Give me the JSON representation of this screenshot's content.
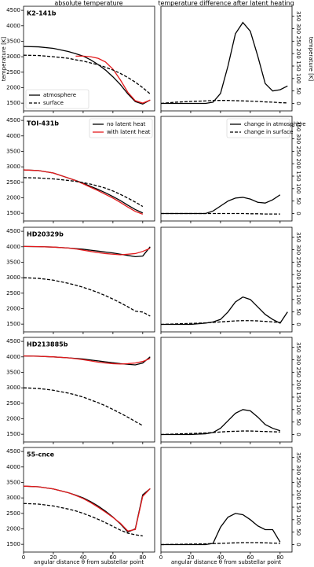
{
  "header": {
    "column_titles": [
      "absolute temperature",
      "temperature difference after latent heating"
    ],
    "x_label": "angular distance θ from substellar point",
    "y_label": "temperature [K]"
  },
  "chart_data": [
    {
      "type": "line",
      "title": "K2-141b",
      "x": [
        0,
        10,
        20,
        30,
        35,
        40,
        45,
        50,
        55,
        60,
        65,
        70,
        75,
        80,
        85
      ],
      "xlim": [
        0,
        88
      ],
      "xticks": [
        0,
        20,
        40,
        60,
        80
      ],
      "ylim": [
        1250,
        4630
      ],
      "yticks": [
        1500,
        2000,
        2500,
        3000,
        3500,
        4000,
        4500
      ],
      "series": [
        {
          "color": "#000000",
          "dash": false,
          "values": [
            3330,
            3320,
            3270,
            3170,
            3100,
            3020,
            2900,
            2750,
            2570,
            2350,
            2100,
            1800,
            1550,
            1470,
            1600
          ]
        },
        {
          "color": "#e41a1c",
          "dash": false,
          "values": [
            null,
            null,
            null,
            null,
            3020,
            3020,
            3000,
            2950,
            2830,
            2600,
            2250,
            1850,
            1580,
            1500,
            1600
          ]
        },
        {
          "color": "#000000",
          "dash": true,
          "values": [
            3050,
            3040,
            3000,
            2950,
            2900,
            2860,
            2800,
            2740,
            2660,
            2570,
            2460,
            2330,
            2180,
            2000,
            1800
          ]
        }
      ],
      "legend": {
        "position": "lower left",
        "entries": [
          {
            "label": "atmosphere",
            "color": "#000000",
            "dash": false
          },
          {
            "label": "surface",
            "color": "#000000",
            "dash": true
          }
        ]
      }
    },
    {
      "type": "line",
      "x": [
        0,
        10,
        20,
        30,
        35,
        40,
        45,
        50,
        55,
        60,
        65,
        70,
        75,
        80,
        85
      ],
      "xlim": [
        0,
        88
      ],
      "xticks": [
        0,
        20,
        40,
        60,
        80
      ],
      "ylim": [
        -30,
        390
      ],
      "yticks": [
        0,
        50,
        100,
        150,
        200,
        250,
        300,
        350
      ],
      "series": [
        {
          "color": "#000000",
          "dash": false,
          "values": [
            0,
            0,
            0,
            0,
            5,
            40,
            150,
            280,
            325,
            290,
            190,
            80,
            50,
            55,
            70
          ]
        },
        {
          "color": "#000000",
          "dash": true,
          "values": [
            0,
            5,
            8,
            10,
            12,
            12,
            12,
            11,
            10,
            9,
            8,
            6,
            5,
            3,
            2
          ]
        }
      ]
    },
    {
      "type": "line",
      "title": "TOI-431b",
      "x": [
        0,
        10,
        20,
        30,
        35,
        40,
        45,
        50,
        55,
        60,
        65,
        70,
        75,
        80,
        85
      ],
      "xlim": [
        0,
        88
      ],
      "xticks": [
        0,
        20,
        40,
        60,
        80
      ],
      "ylim": [
        1250,
        4630
      ],
      "yticks": [
        1500,
        2000,
        2500,
        3000,
        3500,
        4000,
        4500
      ],
      "series": [
        {
          "color": "#000000",
          "dash": false,
          "values": [
            2900,
            2880,
            2800,
            2640,
            2560,
            2470,
            2370,
            2270,
            2160,
            2040,
            1910,
            1760,
            1620,
            1510,
            null
          ]
        },
        {
          "color": "#e41a1c",
          "dash": false,
          "values": [
            2900,
            2880,
            2800,
            2640,
            2555,
            2450,
            2340,
            2230,
            2110,
            1990,
            1850,
            1700,
            1560,
            1470,
            null
          ]
        },
        {
          "color": "#000000",
          "dash": true,
          "values": [
            2650,
            2640,
            2610,
            2560,
            2530,
            2490,
            2440,
            2380,
            2310,
            2220,
            2110,
            1990,
            1860,
            1720,
            null
          ]
        }
      ],
      "legend": {
        "position": "upper right",
        "entries": [
          {
            "label": "no latent heat",
            "color": "#000000",
            "dash": false
          },
          {
            "label": "with latent heat",
            "color": "#e41a1c",
            "dash": false
          }
        ]
      }
    },
    {
      "type": "line",
      "x": [
        0,
        10,
        20,
        30,
        35,
        40,
        45,
        50,
        55,
        60,
        65,
        70,
        75,
        80,
        85
      ],
      "xlim": [
        0,
        88
      ],
      "xticks": [
        0,
        20,
        40,
        60,
        80
      ],
      "ylim": [
        -30,
        390
      ],
      "yticks": [
        0,
        50,
        100,
        150,
        200,
        250,
        300,
        350
      ],
      "series": [
        {
          "color": "#000000",
          "dash": false,
          "values": [
            0,
            0,
            0,
            0,
            10,
            30,
            50,
            62,
            65,
            58,
            45,
            42,
            55,
            75,
            null
          ]
        },
        {
          "color": "#000000",
          "dash": true,
          "values": [
            0,
            0,
            0,
            0,
            0,
            0,
            0,
            0,
            0,
            -1,
            -1,
            -2,
            -2,
            -2,
            null
          ]
        }
      ],
      "legend": {
        "position": "upper right",
        "entries": [
          {
            "label": "change in atmosphere",
            "color": "#000000",
            "dash": false
          },
          {
            "label": "change in surface",
            "color": "#000000",
            "dash": true
          }
        ]
      }
    },
    {
      "type": "line",
      "title": "HD20329b",
      "x": [
        0,
        10,
        20,
        30,
        35,
        40,
        45,
        50,
        55,
        60,
        65,
        70,
        75,
        80,
        85
      ],
      "xlim": [
        0,
        88
      ],
      "xticks": [
        0,
        20,
        40,
        60,
        80
      ],
      "ylim": [
        1250,
        4630
      ],
      "yticks": [
        1500,
        2000,
        2500,
        3000,
        3500,
        4000,
        4500
      ],
      "series": [
        {
          "color": "#000000",
          "dash": false,
          "values": [
            4010,
            4005,
            3990,
            3960,
            3940,
            3920,
            3890,
            3860,
            3830,
            3800,
            3760,
            3720,
            3680,
            3700,
            4000
          ]
        },
        {
          "color": "#e41a1c",
          "dash": false,
          "values": [
            4010,
            4005,
            3990,
            3960,
            3930,
            3890,
            3850,
            3810,
            3780,
            3760,
            3740,
            3760,
            3780,
            3850,
            3950
          ]
        },
        {
          "color": "#000000",
          "dash": true,
          "values": [
            3000,
            2980,
            2920,
            2820,
            2760,
            2690,
            2610,
            2520,
            2420,
            2310,
            2190,
            2060,
            1920,
            1890,
            1760
          ]
        }
      ]
    },
    {
      "type": "line",
      "x": [
        0,
        10,
        20,
        30,
        35,
        40,
        45,
        50,
        55,
        60,
        65,
        70,
        75,
        80,
        85
      ],
      "xlim": [
        0,
        88
      ],
      "xticks": [
        0,
        20,
        40,
        60,
        80
      ],
      "ylim": [
        -30,
        390
      ],
      "yticks": [
        0,
        50,
        100,
        150,
        200,
        250,
        300,
        350
      ],
      "series": [
        {
          "color": "#000000",
          "dash": false,
          "values": [
            0,
            0,
            0,
            5,
            10,
            20,
            50,
            90,
            110,
            100,
            70,
            40,
            20,
            5,
            50
          ]
        },
        {
          "color": "#000000",
          "dash": true,
          "values": [
            0,
            2,
            4,
            6,
            8,
            10,
            12,
            14,
            15,
            15,
            14,
            12,
            10,
            8,
            null
          ]
        }
      ]
    },
    {
      "type": "line",
      "title": "HD213885b",
      "x": [
        0,
        10,
        20,
        30,
        35,
        40,
        45,
        50,
        55,
        60,
        65,
        70,
        75,
        80,
        85
      ],
      "xlim": [
        0,
        88
      ],
      "xticks": [
        0,
        20,
        40,
        60,
        80
      ],
      "ylim": [
        1250,
        4630
      ],
      "yticks": [
        1500,
        2000,
        2500,
        3000,
        3500,
        4000,
        4500
      ],
      "series": [
        {
          "color": "#000000",
          "dash": false,
          "values": [
            4030,
            4020,
            4000,
            3970,
            3950,
            3930,
            3900,
            3870,
            3840,
            3810,
            3780,
            3760,
            3740,
            3800,
            4000
          ]
        },
        {
          "color": "#e41a1c",
          "dash": false,
          "values": [
            4030,
            4020,
            4000,
            3970,
            3940,
            3910,
            3870,
            3830,
            3800,
            3780,
            3770,
            3780,
            3800,
            3850,
            3950
          ]
        },
        {
          "color": "#000000",
          "dash": true,
          "values": [
            3000,
            2980,
            2920,
            2830,
            2770,
            2700,
            2610,
            2520,
            2420,
            2300,
            2180,
            2050,
            1910,
            1780,
            null
          ]
        }
      ]
    },
    {
      "type": "line",
      "x": [
        0,
        10,
        20,
        30,
        35,
        40,
        45,
        50,
        55,
        60,
        65,
        70,
        75,
        80,
        85
      ],
      "xlim": [
        0,
        88
      ],
      "xticks": [
        0,
        20,
        40,
        60,
        80
      ],
      "ylim": [
        -30,
        390
      ],
      "yticks": [
        0,
        50,
        100,
        150,
        200,
        250,
        300,
        350
      ],
      "series": [
        {
          "color": "#000000",
          "dash": false,
          "values": [
            0,
            0,
            0,
            3,
            8,
            25,
            55,
            85,
            100,
            95,
            70,
            40,
            25,
            15,
            null
          ]
        },
        {
          "color": "#000000",
          "dash": true,
          "values": [
            0,
            2,
            4,
            6,
            8,
            10,
            12,
            13,
            14,
            14,
            13,
            12,
            11,
            10,
            null
          ]
        }
      ]
    },
    {
      "type": "line",
      "title": "55-cnce",
      "x": [
        0,
        10,
        20,
        30,
        35,
        40,
        45,
        50,
        55,
        60,
        65,
        70,
        75,
        80,
        85
      ],
      "xlim": [
        0,
        88
      ],
      "xticks": [
        0,
        20,
        40,
        60,
        80
      ],
      "ylim": [
        1250,
        4630
      ],
      "yticks": [
        1500,
        2000,
        2500,
        3000,
        3500,
        4000,
        4500
      ],
      "xtick_labels": true,
      "series": [
        {
          "color": "#000000",
          "dash": false,
          "values": [
            3380,
            3360,
            3290,
            3170,
            3090,
            3000,
            2880,
            2740,
            2570,
            2380,
            2160,
            1900,
            2000,
            3100,
            3300
          ]
        },
        {
          "color": "#e41a1c",
          "dash": false,
          "values": [
            3380,
            3360,
            3290,
            3170,
            3080,
            2980,
            2850,
            2700,
            2540,
            2370,
            2180,
            1930,
            1980,
            3050,
            3300
          ]
        },
        {
          "color": "#000000",
          "dash": true,
          "values": [
            2820,
            2800,
            2740,
            2640,
            2580,
            2500,
            2410,
            2310,
            2200,
            2080,
            1960,
            1860,
            1810,
            1770,
            null
          ]
        }
      ]
    },
    {
      "type": "line",
      "x": [
        0,
        10,
        20,
        30,
        35,
        40,
        45,
        50,
        55,
        60,
        65,
        70,
        75,
        80,
        85
      ],
      "xlim": [
        0,
        88
      ],
      "xticks": [
        0,
        20,
        40,
        60,
        80
      ],
      "ylim": [
        -30,
        390
      ],
      "yticks": [
        0,
        50,
        100,
        150,
        200,
        250,
        300,
        350
      ],
      "xtick_labels": true,
      "series": [
        {
          "color": "#000000",
          "dash": false,
          "values": [
            0,
            0,
            0,
            0,
            5,
            70,
            110,
            125,
            120,
            100,
            75,
            60,
            60,
            10,
            null
          ]
        },
        {
          "color": "#000000",
          "dash": true,
          "values": [
            0,
            1,
            2,
            3,
            4,
            5,
            6,
            7,
            8,
            8,
            8,
            7,
            6,
            5,
            null
          ]
        }
      ]
    }
  ]
}
